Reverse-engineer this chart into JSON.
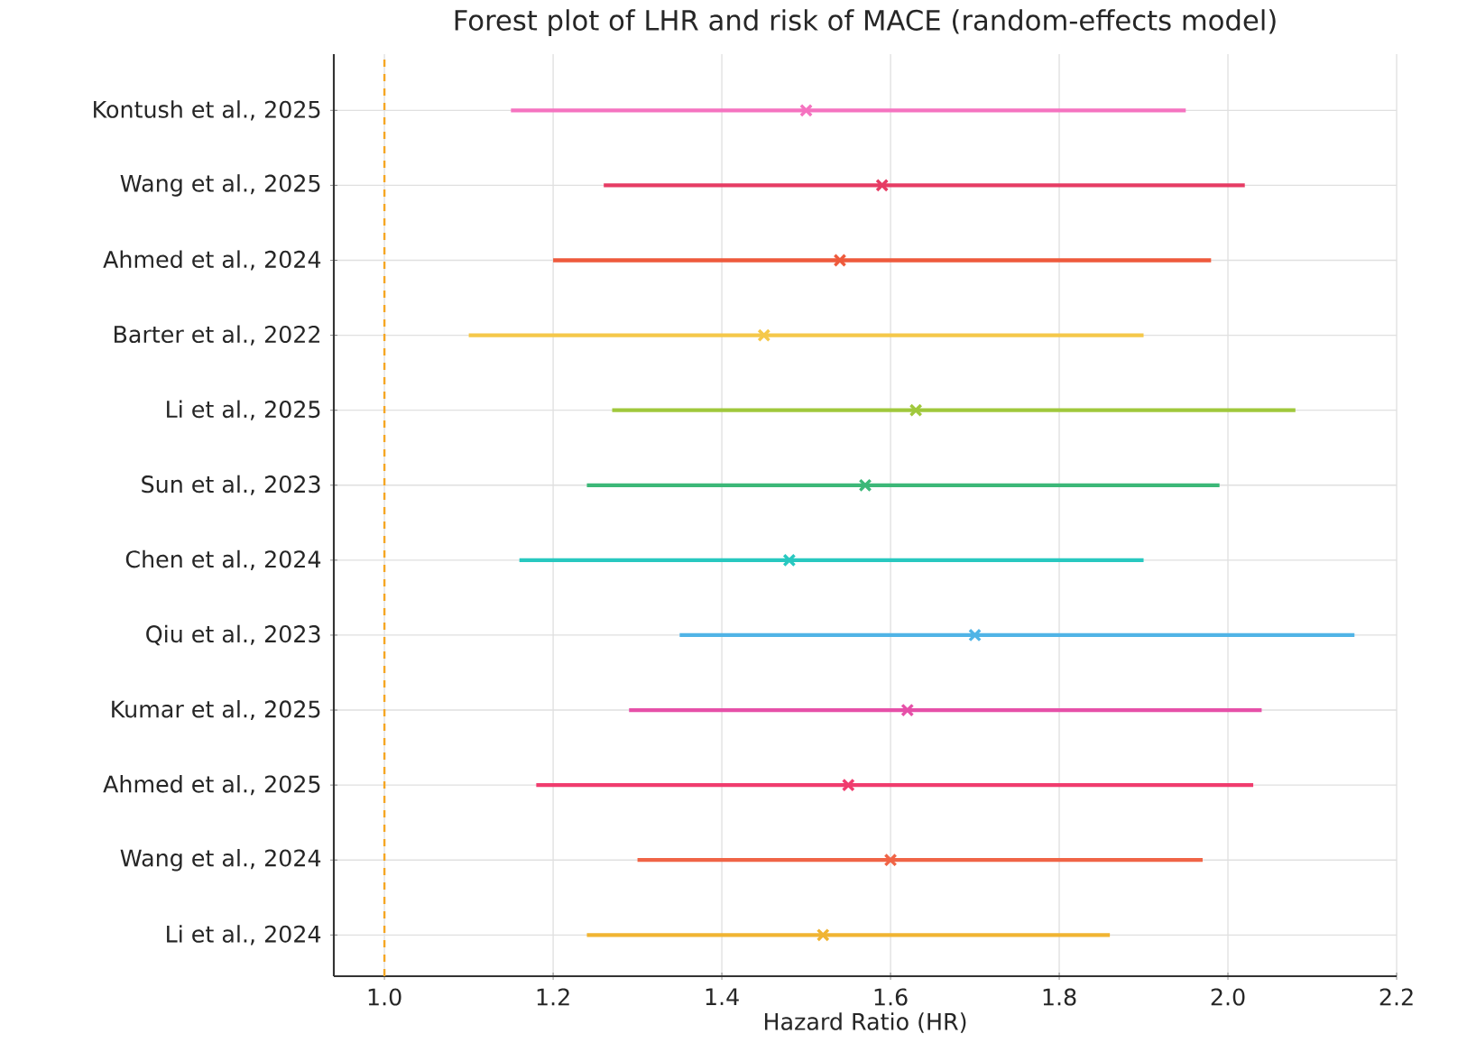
{
  "chart_data": {
    "type": "scatter",
    "orientation": "horizontal",
    "title": "Forest plot of LHR and risk of MACE (random-effects model)",
    "xlabel": "Hazard Ratio (HR)",
    "categories": [
      "Kontush et al., 2025",
      "Wang et al., 2025",
      "Ahmed et al., 2024",
      "Barter et al., 2022",
      "Li et al., 2025",
      "Sun et al., 2023",
      "Chen et al., 2024",
      "Qiu et al., 2023",
      "Kumar et al., 2025",
      "Ahmed et al., 2025",
      "Wang et al., 2024",
      "Li et al., 2024"
    ],
    "values": [
      1.5,
      1.59,
      1.54,
      1.45,
      1.63,
      1.57,
      1.48,
      1.7,
      1.62,
      1.55,
      1.6,
      1.52
    ],
    "errors": [
      [
        1.15,
        1.95
      ],
      [
        1.26,
        2.02
      ],
      [
        1.2,
        1.98
      ],
      [
        1.1,
        1.9
      ],
      [
        1.27,
        2.08
      ],
      [
        1.24,
        1.99
      ],
      [
        1.16,
        1.9
      ],
      [
        1.35,
        2.15
      ],
      [
        1.29,
        2.04
      ],
      [
        1.18,
        2.03
      ],
      [
        1.3,
        1.97
      ],
      [
        1.24,
        1.86
      ]
    ],
    "colors": [
      "#f573c0",
      "#e63c64",
      "#ee5a3c",
      "#f5c84a",
      "#a0c83c",
      "#3cb878",
      "#28c8c0",
      "#50b4e6",
      "#e650a8",
      "#f03c6e",
      "#f06446",
      "#f0b432"
    ],
    "marker": "cross",
    "xlim": [
      0.94,
      2.2
    ],
    "xticks": [
      {
        "value": 1.0,
        "label": "1.0"
      },
      {
        "value": 1.2,
        "label": "1.2"
      },
      {
        "value": 1.4,
        "label": "1.4"
      },
      {
        "value": 1.6,
        "label": "1.6"
      },
      {
        "value": 1.8,
        "label": "1.8"
      },
      {
        "value": 2.0,
        "label": "2.0"
      },
      {
        "value": 2.2,
        "label": "2.2"
      }
    ],
    "ref_lines": [
      {
        "axis": "x",
        "value": 1.0,
        "color": "#f5a623",
        "line_style": "dashed"
      }
    ],
    "grid": true
  }
}
